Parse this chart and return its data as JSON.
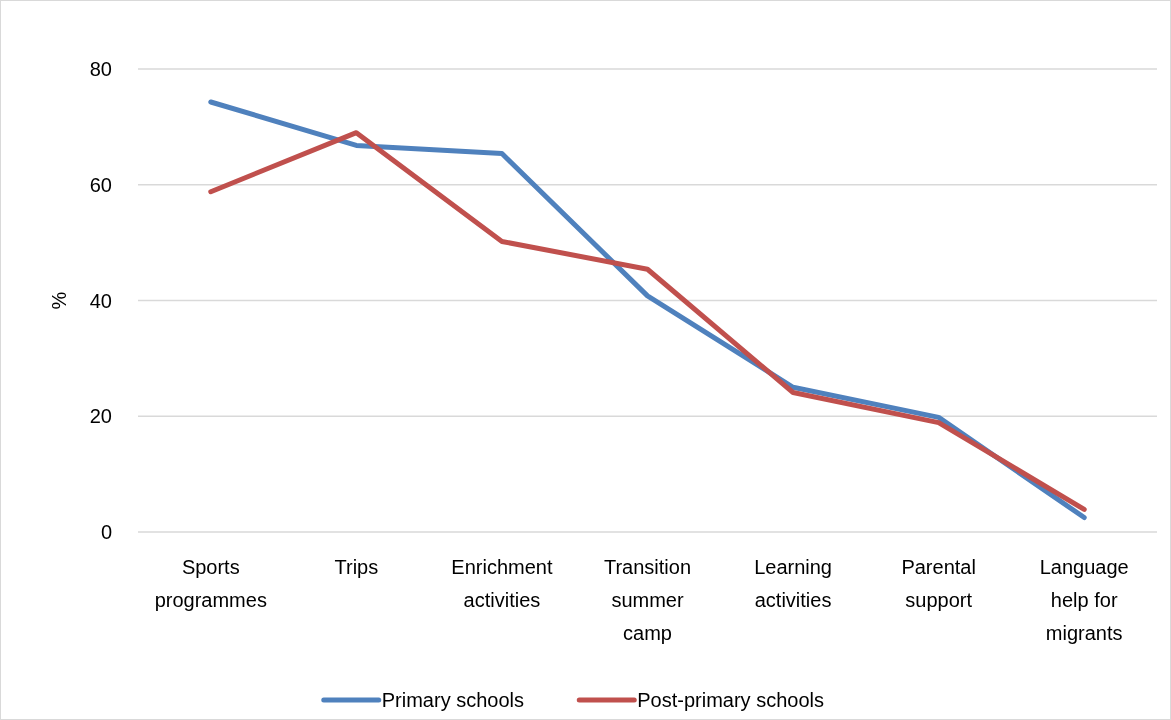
{
  "chart_data": {
    "type": "line",
    "categories": [
      "Sports programmes",
      "Trips",
      "Enrichment activities",
      "Transition summer camp",
      "Learning activities",
      "Parental support",
      "Language help for migrants"
    ],
    "series": [
      {
        "name": "Primary schools",
        "color": "#4f81bd",
        "values": [
          74.3,
          66.8,
          65.4,
          40.8,
          25.0,
          19.8,
          2.5
        ]
      },
      {
        "name": "Post-primary schools",
        "color": "#c0504d",
        "values": [
          58.8,
          69.0,
          50.2,
          45.4,
          24.1,
          18.9,
          3.9
        ]
      }
    ],
    "ylabel": "%",
    "ylim": [
      0,
      80
    ],
    "yticks": [
      0,
      20,
      40,
      60,
      80
    ],
    "grid": "y",
    "legend": "bottom",
    "marker": "none",
    "line_style": "solid"
  }
}
